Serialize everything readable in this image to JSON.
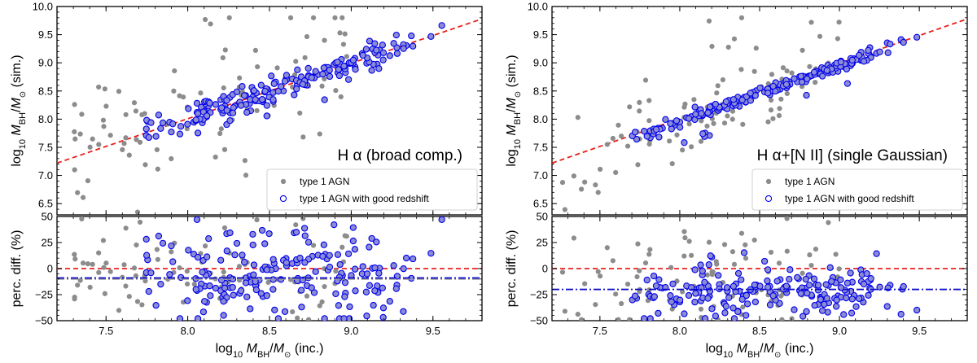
{
  "chart_data": {
    "type": "scatter",
    "y_axis_label": {
      "prefix": "log",
      "sub": "10",
      "M": "M",
      "bh": "BH",
      "slash": "/",
      "msun": "M",
      "suffix": " (sim.)"
    },
    "y_axis_label_bottom": "perc. diff. (%)",
    "x_axis_label": {
      "prefix": "log",
      "sub": "10",
      "M": "M",
      "bh": "BH",
      "slash": "/",
      "msun": "M",
      "suffix": " (inc.)"
    },
    "xlim": [
      7.2,
      9.8
    ],
    "ylim_top": [
      6.3,
      10.0
    ],
    "ylim_bottom": [
      -50,
      50
    ],
    "x_ticks": [
      "7.5",
      "8.0",
      "8.5",
      "9.0",
      "9.5"
    ],
    "y_ticks_top": [
      "6.5",
      "7.0",
      "7.5",
      "8.0",
      "8.5",
      "9.0",
      "9.5",
      "10.0"
    ],
    "y_ticks_bottom": [
      "−50",
      "−25",
      "0",
      "25",
      "50"
    ],
    "legend": [
      "type 1 AGN",
      "type 1 AGN with good redshift"
    ],
    "colors": {
      "grey": "#8c8c8c",
      "blue_edge": "#0000ee",
      "blue_fill": "#8c8cd4",
      "red": "#e8201c",
      "blue_line": "#0b0bcc",
      "grey_line": "#9b9b9b"
    },
    "panels": [
      {
        "annotation": "H α (broad comp.)",
        "reference_line": {
          "x": [
            7.2,
            9.8
          ],
          "y": [
            7.22,
            9.78
          ]
        },
        "mean_line_blue": -9,
        "mean_line_grey": -10,
        "gen": {
          "seed": 11,
          "offset": 0.0,
          "scatter": 0.11,
          "gtop": 2.4,
          "diffMean": -9,
          "diffSd": 23
        }
      },
      {
        "annotation": "H α+[N II] (single Gaussian)",
        "reference_line": {
          "x": [
            7.2,
            9.8
          ],
          "y": [
            7.22,
            9.78
          ]
        },
        "mean_line_blue": -20,
        "mean_line_grey": -20,
        "gen": {
          "seed": 29,
          "offset": -0.05,
          "scatter": 0.05,
          "gtop": 2.0,
          "diffMean": -20,
          "diffSd": 12
        }
      }
    ]
  }
}
